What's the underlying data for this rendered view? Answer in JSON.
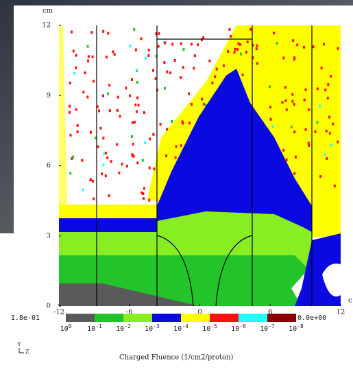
{
  "chart_data": {
    "type": "heatmap",
    "y_unit": "cm",
    "x_unit": "c",
    "xlim": [
      -12,
      12
    ],
    "xticks": [
      -12,
      -6,
      0,
      6,
      12
    ],
    "ylim": [
      0,
      12
    ],
    "yticks": [
      0,
      3,
      6,
      9,
      12
    ],
    "colorbar": {
      "max_label": "1.8e-01",
      "min_label": "0.0e+00",
      "base": "10",
      "exponents": [
        "0",
        "-1",
        "-2",
        "-3",
        "-4",
        "-5",
        "-6",
        "-7",
        "-8"
      ],
      "colors": [
        "#5a5a5a",
        "#22c42a",
        "#88ee22",
        "#0a0ae0",
        "#ffff00",
        "#ff1010",
        "#22ffff",
        "#8b0000"
      ],
      "label": "Charged Fluence (1/cm2/proton)"
    },
    "axis_indicator": {
      "vertical": "Y",
      "horizontal": "Z"
    }
  }
}
